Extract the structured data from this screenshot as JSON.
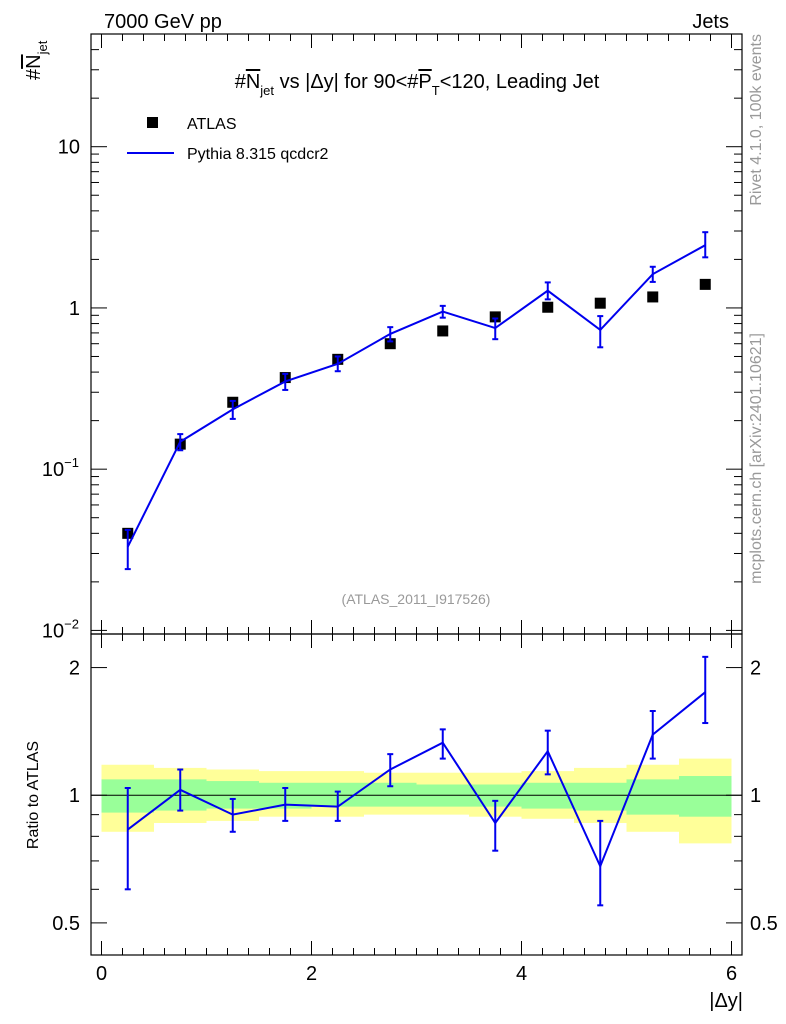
{
  "header": {
    "left": "7000 GeV pp",
    "right": "Jets"
  },
  "side_labels": {
    "rivet": "Rivet 4.1.0,  100k events",
    "mcplots": "mcplots.cern.ch [arXiv:2401.10621]"
  },
  "chart_data": {
    "type": "scatter",
    "title": "#N_jet vs |Δy| for 90<#P_T<120, Leading Jet",
    "title_parts": {
      "a": "#",
      "b": "N",
      "c": "jet",
      "d": " vs |Δy| for 90<#",
      "e": "P",
      "f": "T",
      "g": "<120, Leading Jet"
    },
    "ylabel": "#N_jet",
    "ylabel_parts": {
      "hash": "#",
      "n": "N",
      "sub": "jet"
    },
    "xlabel": "|Δy|",
    "ratio_ylabel": "Ratio to ATLAS",
    "analysis_tag": "(ATLAS_2011_I917526)",
    "xlim": [
      -0.1,
      6.1
    ],
    "ylim_log": [
      0.0095,
      50
    ],
    "ratio_ylim": [
      0.42,
      2.4
    ],
    "x_ticks": [
      "0",
      "2",
      "4",
      "6"
    ],
    "y_ticks": [
      {
        "value": 10,
        "label": "10"
      },
      {
        "value": 1,
        "label": "1"
      },
      {
        "value": 0.1,
        "label": "10",
        "exp": "−1"
      },
      {
        "value": 0.01,
        "label": "10",
        "exp": "−2"
      }
    ],
    "ratio_ticks": [
      {
        "value": 2,
        "label": "2"
      },
      {
        "value": 1,
        "label": "1"
      },
      {
        "value": 0.5,
        "label": "0.5"
      }
    ],
    "x": [
      0.25,
      0.75,
      1.25,
      1.75,
      2.25,
      2.75,
      3.25,
      3.75,
      4.25,
      4.75,
      5.25,
      5.75
    ],
    "bin_edges": [
      0,
      0.5,
      1,
      1.5,
      2,
      2.5,
      3,
      3.5,
      4,
      4.5,
      5,
      5.5,
      6
    ],
    "series": [
      {
        "name": "ATLAS",
        "color": "#000000",
        "values": [
          0.04,
          0.143,
          0.26,
          0.37,
          0.48,
          0.6,
          0.72,
          0.88,
          1.01,
          1.07,
          1.17,
          1.4
        ]
      },
      {
        "name": "Pythia 8.315 qcdcr2",
        "color": "#0000ee",
        "values": [
          0.033,
          0.148,
          0.235,
          0.35,
          0.45,
          0.69,
          0.95,
          0.75,
          1.28,
          0.73,
          1.62,
          2.45
        ],
        "err_low": [
          0.024,
          0.131,
          0.205,
          0.31,
          0.405,
          0.62,
          0.87,
          0.64,
          1.13,
          0.57,
          1.45,
          2.06
        ],
        "err_high": [
          0.042,
          0.165,
          0.265,
          0.39,
          0.5,
          0.76,
          1.03,
          0.86,
          1.44,
          0.89,
          1.8,
          2.95
        ]
      }
    ],
    "ratio": {
      "values": [
        0.83,
        1.03,
        0.9,
        0.95,
        0.94,
        1.15,
        1.33,
        0.86,
        1.27,
        0.68,
        1.39,
        1.75
      ],
      "err_low": [
        0.6,
        0.92,
        0.82,
        0.87,
        0.87,
        1.05,
        1.22,
        0.74,
        1.12,
        0.55,
        1.22,
        1.48
      ],
      "err_high": [
        1.04,
        1.15,
        0.98,
        1.04,
        1.02,
        1.25,
        1.43,
        0.97,
        1.42,
        0.87,
        1.58,
        2.12
      ],
      "band_inner_low": [
        0.91,
        0.92,
        0.93,
        0.93,
        0.94,
        0.94,
        0.94,
        0.94,
        0.93,
        0.92,
        0.9,
        0.89
      ],
      "band_inner_high": [
        1.09,
        1.09,
        1.08,
        1.07,
        1.07,
        1.07,
        1.06,
        1.06,
        1.07,
        1.07,
        1.09,
        1.11
      ],
      "band_outer_low": [
        0.82,
        0.86,
        0.87,
        0.89,
        0.89,
        0.9,
        0.9,
        0.89,
        0.88,
        0.86,
        0.82,
        0.77
      ],
      "band_outer_high": [
        1.18,
        1.16,
        1.15,
        1.14,
        1.14,
        1.13,
        1.13,
        1.13,
        1.14,
        1.16,
        1.18,
        1.22
      ],
      "band_inner_color": "#99ff99",
      "band_outer_color": "#ffff99"
    }
  }
}
